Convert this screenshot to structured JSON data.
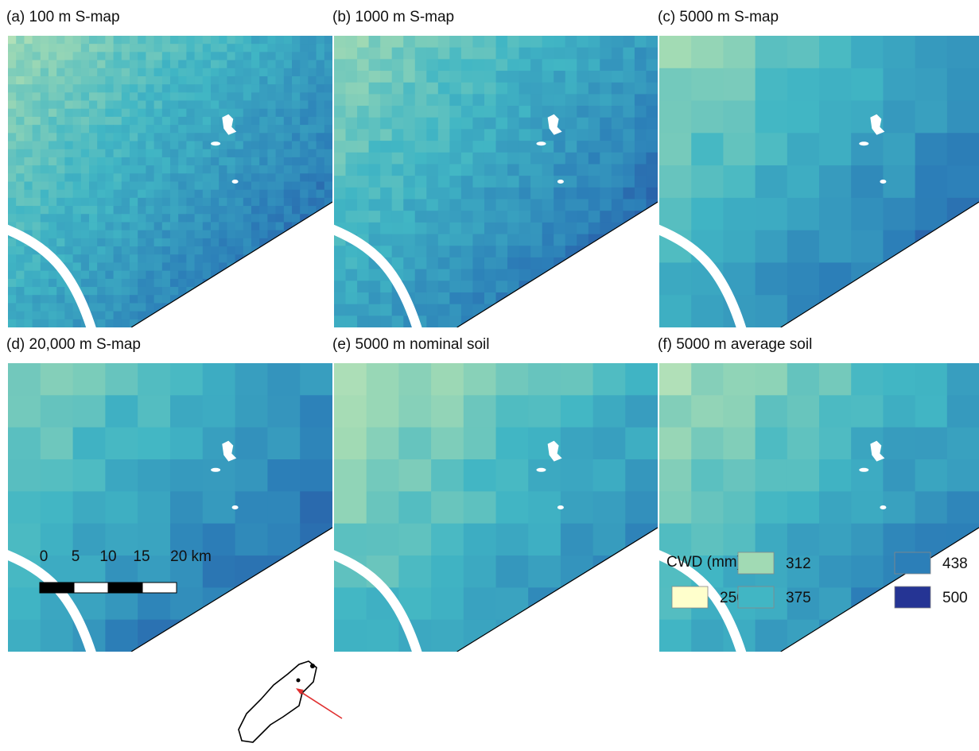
{
  "panels": [
    {
      "title": "(a) 100 m S-map"
    },
    {
      "title": "(b) 1000 m S-map"
    },
    {
      "title": "(c) 5000 m S-map"
    },
    {
      "title": "(d) 20,000 m S-map"
    },
    {
      "title": "(e) 5000 m nominal soil"
    },
    {
      "title": "(f) 5000 m average soil"
    }
  ],
  "scale_bar": {
    "labels": [
      "0",
      "5",
      "10",
      "15",
      "20 km"
    ]
  },
  "legend": {
    "title": "CWD (mm)",
    "items": [
      {
        "value": 250,
        "color": "#ffffcc"
      },
      {
        "value": 312,
        "color": "#a1dab4"
      },
      {
        "value": 375,
        "color": "#41b6c4"
      },
      {
        "value": 438,
        "color": "#2c7fb8"
      },
      {
        "value": 500,
        "color": "#253494"
      }
    ]
  }
}
